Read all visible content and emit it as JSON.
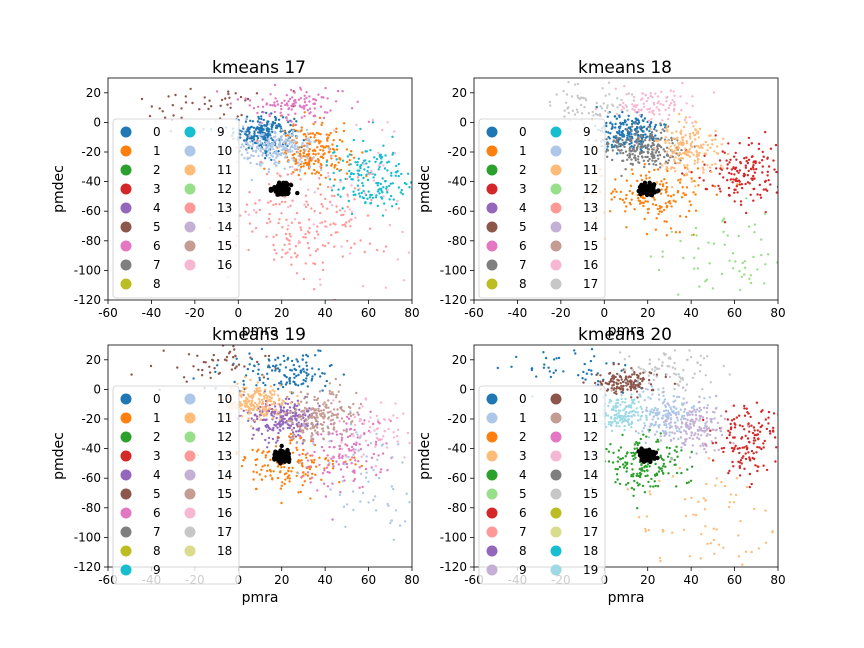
{
  "chart_data": [
    {
      "type": "scatter",
      "title": "kmeans 17",
      "xlabel": "pmra",
      "ylabel": "pmdec",
      "xlim": [
        -60,
        80
      ],
      "ylim": [
        -120,
        30
      ],
      "xticks": [
        -60,
        -40,
        -20,
        0,
        20,
        40,
        60,
        80
      ],
      "yticks": [
        20,
        0,
        -20,
        -40,
        -60,
        -80,
        -100,
        -120
      ],
      "legend_placement": "lower-left, 2 columns",
      "legend": [
        "0",
        "1",
        "2",
        "3",
        "4",
        "5",
        "6",
        "7",
        "8",
        "9",
        "10",
        "11",
        "12",
        "13",
        "14",
        "15",
        "16"
      ],
      "clusters": [
        {
          "label": "0",
          "color": "#1f77b4",
          "center": [
            12,
            -7
          ],
          "spread": [
            7,
            6
          ],
          "count": 220
        },
        {
          "label": "1",
          "color": "#ff7f0e",
          "center": [
            35,
            -20
          ],
          "spread": [
            8,
            9
          ],
          "count": 200
        },
        {
          "label": "5",
          "color": "#8c564b",
          "center": [
            -15,
            12
          ],
          "spread": [
            15,
            8
          ],
          "count": 45
        },
        {
          "label": "6",
          "color": "#e377c2",
          "center": [
            25,
            13
          ],
          "spread": [
            12,
            6
          ],
          "count": 110
        },
        {
          "label": "9",
          "color": "#17becf",
          "center": [
            62,
            -38
          ],
          "spread": [
            10,
            12
          ],
          "count": 170
        },
        {
          "label": "10",
          "color": "#aec7e8",
          "center": [
            18,
            -18
          ],
          "spread": [
            9,
            7
          ],
          "count": 220
        },
        {
          "label": "13",
          "color": "#ff9896",
          "center": [
            30,
            -65
          ],
          "spread": [
            18,
            20
          ],
          "count": 180
        },
        {
          "label": "16",
          "color": "#f7b6d2",
          "center": [
            55,
            -55
          ],
          "spread": [
            22,
            25
          ],
          "count": 70
        }
      ],
      "highlight": {
        "label": "cluster core",
        "color": "#000000",
        "center": [
          20,
          -45
        ],
        "spread": [
          2,
          2
        ],
        "count": 90
      }
    },
    {
      "type": "scatter",
      "title": "kmeans 18",
      "xlabel": "pmra",
      "ylabel": "pmdec",
      "xlim": [
        -60,
        80
      ],
      "ylim": [
        -120,
        30
      ],
      "xticks": [
        -60,
        -40,
        -20,
        0,
        20,
        40,
        60,
        80
      ],
      "yticks": [
        20,
        0,
        -20,
        -40,
        -60,
        -80,
        -100,
        -120
      ],
      "legend_placement": "lower-left, 2 columns",
      "legend": [
        "0",
        "1",
        "2",
        "3",
        "4",
        "5",
        "6",
        "7",
        "8",
        "9",
        "10",
        "11",
        "12",
        "13",
        "14",
        "15",
        "16",
        "17"
      ],
      "clusters": [
        {
          "label": "0",
          "color": "#1f77b4",
          "center": [
            12,
            -7
          ],
          "spread": [
            7,
            6
          ],
          "count": 200
        },
        {
          "label": "1",
          "color": "#ff7f0e",
          "center": [
            22,
            -50
          ],
          "spread": [
            12,
            10
          ],
          "count": 160
        },
        {
          "label": "3",
          "color": "#d62728",
          "center": [
            65,
            -35
          ],
          "spread": [
            10,
            12
          ],
          "count": 160
        },
        {
          "label": "7",
          "color": "#7f7f7f",
          "center": [
            18,
            -18
          ],
          "spread": [
            9,
            7
          ],
          "count": 220
        },
        {
          "label": "11",
          "color": "#ffbb78",
          "center": [
            38,
            -18
          ],
          "spread": [
            8,
            9
          ],
          "count": 180
        },
        {
          "label": "12",
          "color": "#98df8a",
          "center": [
            55,
            -90
          ],
          "spread": [
            18,
            15
          ],
          "count": 60
        },
        {
          "label": "16",
          "color": "#f7b6d2",
          "center": [
            22,
            12
          ],
          "spread": [
            10,
            6
          ],
          "count": 90
        },
        {
          "label": "17",
          "color": "#c7c7c7",
          "center": [
            -8,
            12
          ],
          "spread": [
            12,
            8
          ],
          "count": 70
        }
      ],
      "highlight": {
        "label": "cluster core",
        "color": "#000000",
        "center": [
          20,
          -45
        ],
        "spread": [
          2,
          2
        ],
        "count": 90
      }
    },
    {
      "type": "scatter",
      "title": "kmeans 19",
      "xlabel": "pmra",
      "ylabel": "pmdec",
      "xlim": [
        -60,
        80
      ],
      "ylim": [
        -120,
        30
      ],
      "xticks": [
        -60,
        -40,
        -20,
        0,
        20,
        40,
        60,
        80
      ],
      "yticks": [
        20,
        0,
        -20,
        -40,
        -60,
        -80,
        -100,
        -120
      ],
      "legend_placement": "lower-left, 2 columns",
      "legend": [
        "0",
        "1",
        "2",
        "3",
        "4",
        "5",
        "6",
        "7",
        "8",
        "9",
        "10",
        "11",
        "12",
        "13",
        "14",
        "15",
        "16",
        "17",
        "18"
      ],
      "clusters": [
        {
          "label": "0",
          "color": "#1f77b4",
          "center": [
            22,
            10
          ],
          "spread": [
            12,
            7
          ],
          "count": 130
        },
        {
          "label": "1",
          "color": "#ff7f0e",
          "center": [
            22,
            -52
          ],
          "spread": [
            12,
            10
          ],
          "count": 160
        },
        {
          "label": "4",
          "color": "#9467bd",
          "center": [
            20,
            -20
          ],
          "spread": [
            8,
            7
          ],
          "count": 220
        },
        {
          "label": "5",
          "color": "#8c564b",
          "center": [
            -12,
            15
          ],
          "spread": [
            15,
            7
          ],
          "count": 50
        },
        {
          "label": "6",
          "color": "#e377c2",
          "center": [
            50,
            -42
          ],
          "spread": [
            10,
            14
          ],
          "count": 140
        },
        {
          "label": "10",
          "color": "#aec7e8",
          "center": [
            60,
            -60
          ],
          "spread": [
            15,
            25
          ],
          "count": 70
        },
        {
          "label": "11",
          "color": "#ffbb78",
          "center": [
            8,
            -8
          ],
          "spread": [
            7,
            6
          ],
          "count": 200
        },
        {
          "label": "15",
          "color": "#c49c94",
          "center": [
            38,
            -18
          ],
          "spread": [
            8,
            9
          ],
          "count": 190
        },
        {
          "label": "16",
          "color": "#f7b6d2",
          "center": [
            65,
            -25
          ],
          "spread": [
            10,
            10
          ],
          "count": 60
        }
      ],
      "highlight": {
        "label": "cluster core",
        "color": "#000000",
        "center": [
          20,
          -45
        ],
        "spread": [
          2,
          2
        ],
        "count": 90
      }
    },
    {
      "type": "scatter",
      "title": "kmeans 20",
      "xlabel": "pmra",
      "ylabel": "pmdec",
      "xlim": [
        -60,
        80
      ],
      "ylim": [
        -120,
        30
      ],
      "xticks": [
        -60,
        -40,
        -20,
        0,
        20,
        40,
        60,
        80
      ],
      "yticks": [
        20,
        0,
        -20,
        -40,
        -60,
        -80,
        -100,
        -120
      ],
      "legend_placement": "lower-left, 2 columns",
      "legend": [
        "0",
        "1",
        "2",
        "3",
        "4",
        "5",
        "6",
        "7",
        "8",
        "9",
        "10",
        "11",
        "12",
        "13",
        "14",
        "15",
        "16",
        "17",
        "18",
        "19"
      ],
      "clusters": [
        {
          "label": "0",
          "color": "#1f77b4",
          "center": [
            -15,
            12
          ],
          "spread": [
            15,
            8
          ],
          "count": 45
        },
        {
          "label": "1",
          "color": "#aec7e8",
          "center": [
            28,
            -18
          ],
          "spread": [
            8,
            8
          ],
          "count": 180
        },
        {
          "label": "3",
          "color": "#ffbb78",
          "center": [
            50,
            -85
          ],
          "spread": [
            18,
            18
          ],
          "count": 70
        },
        {
          "label": "4",
          "color": "#2ca02c",
          "center": [
            20,
            -50
          ],
          "spread": [
            10,
            10
          ],
          "count": 180
        },
        {
          "label": "6",
          "color": "#d62728",
          "center": [
            68,
            -35
          ],
          "spread": [
            9,
            12
          ],
          "count": 150
        },
        {
          "label": "9",
          "color": "#c5b0d5",
          "center": [
            42,
            -25
          ],
          "spread": [
            8,
            9
          ],
          "count": 150
        },
        {
          "label": "10",
          "color": "#8c564b",
          "center": [
            10,
            5
          ],
          "spread": [
            7,
            4
          ],
          "count": 150
        },
        {
          "label": "15",
          "color": "#c7c7c7",
          "center": [
            30,
            12
          ],
          "spread": [
            12,
            7
          ],
          "count": 80
        },
        {
          "label": "19",
          "color": "#9edae5",
          "center": [
            8,
            -15
          ],
          "spread": [
            6,
            6
          ],
          "count": 160
        }
      ],
      "highlight": {
        "label": "cluster core",
        "color": "#000000",
        "center": [
          20,
          -45
        ],
        "spread": [
          2,
          2
        ],
        "count": 90
      }
    }
  ],
  "palette": [
    "#1f77b4",
    "#ff7f0e",
    "#2ca02c",
    "#d62728",
    "#9467bd",
    "#8c564b",
    "#e377c2",
    "#7f7f7f",
    "#bcbd22",
    "#17becf"
  ],
  "palette20": [
    "#1f77b4",
    "#aec7e8",
    "#ff7f0e",
    "#ffbb78",
    "#2ca02c",
    "#98df8a",
    "#d62728",
    "#ff9896",
    "#9467bd",
    "#c5b0d5",
    "#8c564b",
    "#c49c94",
    "#e377c2",
    "#f7b6d2",
    "#7f7f7f",
    "#c7c7c7",
    "#bcbd22",
    "#dbdb8d",
    "#17becf",
    "#9edae5"
  ]
}
